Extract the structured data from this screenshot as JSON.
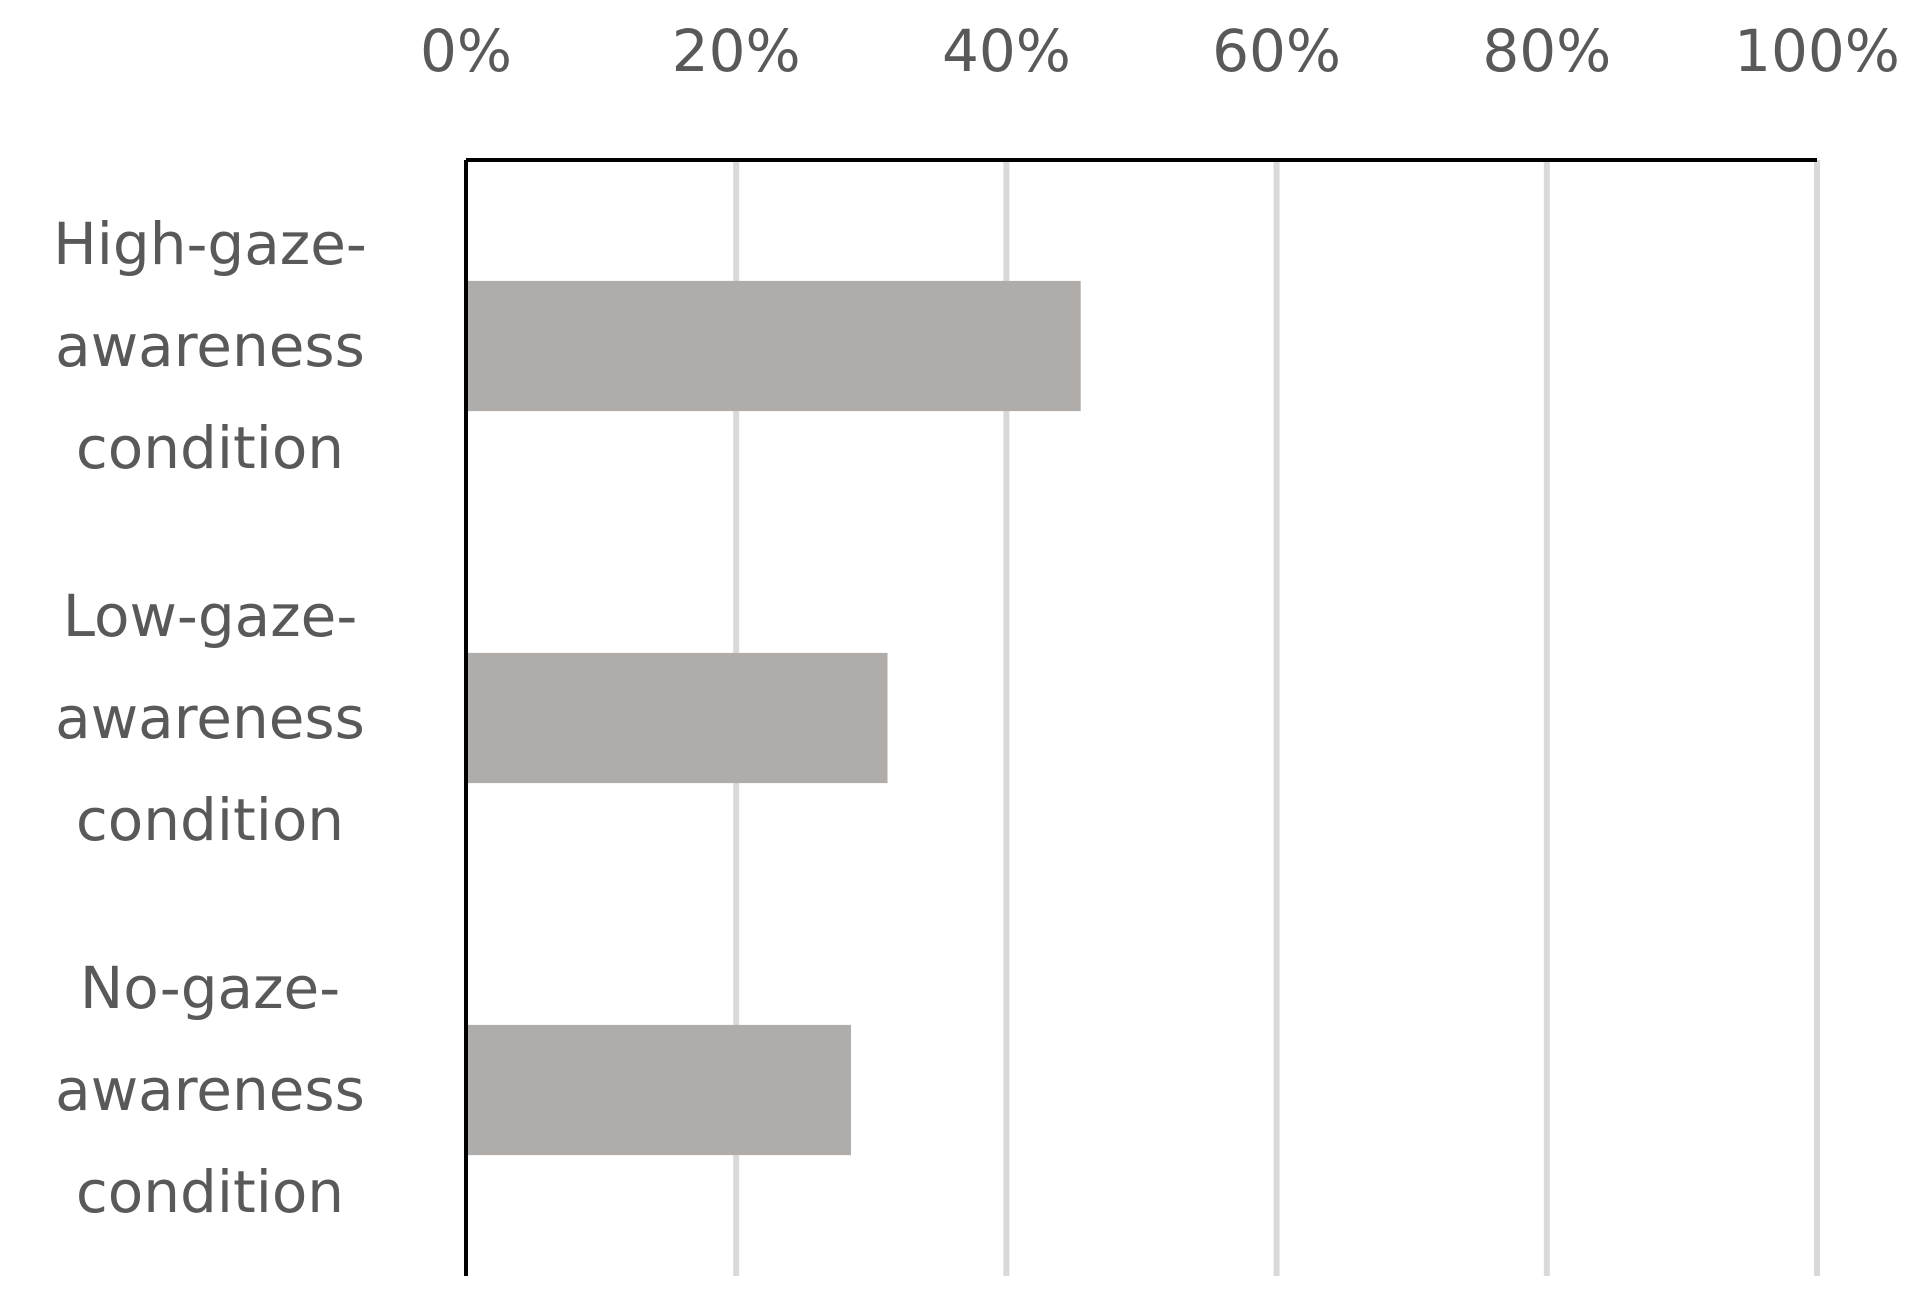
{
  "chart_data": {
    "type": "hbar",
    "categories": [
      "High-gaze-awareness condition",
      "Low-gaze-awareness condition",
      "No-gaze-awareness condition"
    ],
    "values": [
      45.5,
      31.2,
      28.5
    ],
    "color": "#b0aca9",
    "xlim": [
      0,
      100
    ],
    "xticks": [
      {
        "value": 0,
        "label": "0%"
      },
      {
        "value": 20,
        "label": "20%"
      },
      {
        "value": 40,
        "label": "40%"
      },
      {
        "value": 60,
        "label": "60%"
      },
      {
        "value": 80,
        "label": "80%"
      },
      {
        "value": 100,
        "label": "100%"
      }
    ],
    "grid": true
  }
}
